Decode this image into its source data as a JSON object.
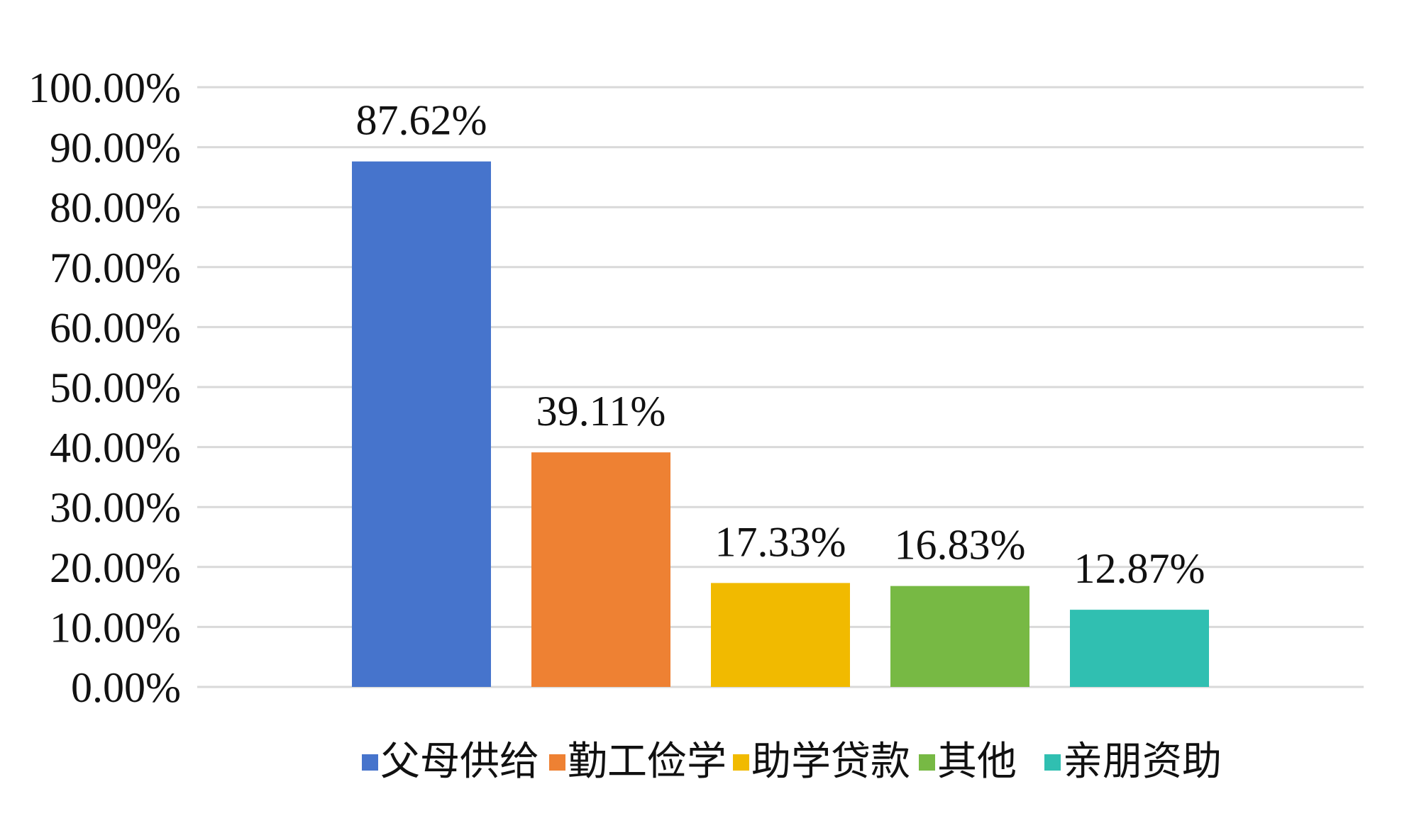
{
  "chart_data": {
    "type": "bar",
    "series": [
      {
        "name": "父母供给",
        "values": [
          87.62
        ],
        "labels": [
          "87.62%"
        ],
        "color": "#4674CC"
      },
      {
        "name": "勤工俭学",
        "values": [
          39.11
        ],
        "labels": [
          "39.11%"
        ],
        "color": "#EE8133"
      },
      {
        "name": "助学贷款",
        "values": [
          17.33
        ],
        "labels": [
          "17.33%"
        ],
        "color": "#F1BA00"
      },
      {
        "name": "其他",
        "values": [
          16.83
        ],
        "labels": [
          "16.83%"
        ],
        "color": "#77B944"
      },
      {
        "name": "亲朋资助",
        "values": [
          12.87
        ],
        "labels": [
          "12.87%"
        ],
        "color": "#30BFB1"
      }
    ],
    "ylim": [
      0,
      100
    ],
    "yticks": [
      {
        "value": 0,
        "label": "0.00%"
      },
      {
        "value": 10,
        "label": "10.00%"
      },
      {
        "value": 20,
        "label": "20.00%"
      },
      {
        "value": 30,
        "label": "30.00%"
      },
      {
        "value": 40,
        "label": "40.00%"
      },
      {
        "value": 50,
        "label": "50.00%"
      },
      {
        "value": 60,
        "label": "60.00%"
      },
      {
        "value": 70,
        "label": "70.00%"
      },
      {
        "value": 80,
        "label": "80.00%"
      },
      {
        "value": 90,
        "label": "90.00%"
      },
      {
        "value": 100,
        "label": "100.00%"
      }
    ],
    "grid": true,
    "grid_color": "#D9D9D9",
    "legend": "bottom"
  }
}
